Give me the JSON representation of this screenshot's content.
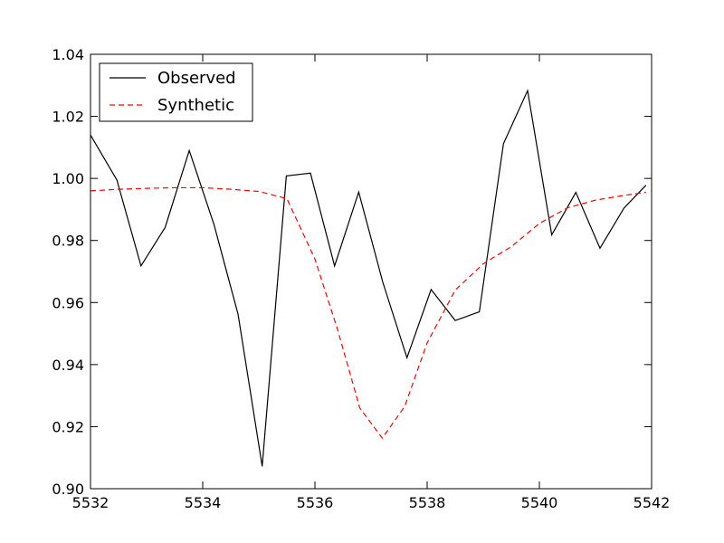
{
  "chart_data": {
    "type": "line",
    "xlim": [
      5532,
      5542
    ],
    "ylim": [
      0.9,
      1.04
    ],
    "xticks": [
      5532,
      5534,
      5536,
      5538,
      5540,
      5542
    ],
    "xtick_labels": [
      "5532",
      "5534",
      "5536",
      "5538",
      "5540",
      "5542"
    ],
    "yticks": [
      0.9,
      0.92,
      0.94,
      0.96,
      0.98,
      1.0,
      1.02,
      1.04
    ],
    "ytick_labels": [
      "0.90",
      "0.92",
      "0.94",
      "0.96",
      "0.98",
      "1.00",
      "1.02",
      "1.04"
    ],
    "grid": false,
    "legend_position": "top-left",
    "series": [
      {
        "name": "Observed",
        "color": "#000000",
        "style": "solid",
        "x": [
          5532.0,
          5532.47,
          5532.9,
          5533.33,
          5533.76,
          5534.2,
          5534.63,
          5535.06,
          5535.49,
          5535.92,
          5536.35,
          5536.78,
          5537.21,
          5537.64,
          5538.07,
          5538.5,
          5538.93,
          5539.36,
          5539.79,
          5540.22,
          5540.65,
          5541.08,
          5541.51,
          5541.9
        ],
        "y": [
          1.014,
          0.9995,
          0.9718,
          0.9842,
          1.009,
          0.9852,
          0.9562,
          0.9072,
          1.0008,
          1.0017,
          0.9718,
          0.9956,
          0.9665,
          0.9422,
          0.9642,
          0.9542,
          0.957,
          1.0112,
          1.0283,
          0.9818,
          0.9955,
          0.9775,
          0.9905,
          0.9978
        ]
      },
      {
        "name": "Synthetic",
        "color": "#ff0000",
        "style": "dashed",
        "x": [
          5532.0,
          5532.5,
          5533.0,
          5533.5,
          5534.0,
          5534.5,
          5535.0,
          5535.5,
          5536.0,
          5536.4,
          5536.8,
          5537.2,
          5537.6,
          5538.0,
          5538.5,
          5539.0,
          5539.5,
          5540.0,
          5540.5,
          5541.0,
          5541.5,
          5541.9
        ],
        "y": [
          0.996,
          0.9965,
          0.9968,
          0.997,
          0.997,
          0.9965,
          0.9958,
          0.9935,
          0.974,
          0.9515,
          0.926,
          0.9163,
          0.9265,
          0.947,
          0.964,
          0.9725,
          0.978,
          0.9855,
          0.9905,
          0.993,
          0.9945,
          0.9955
        ]
      }
    ]
  }
}
